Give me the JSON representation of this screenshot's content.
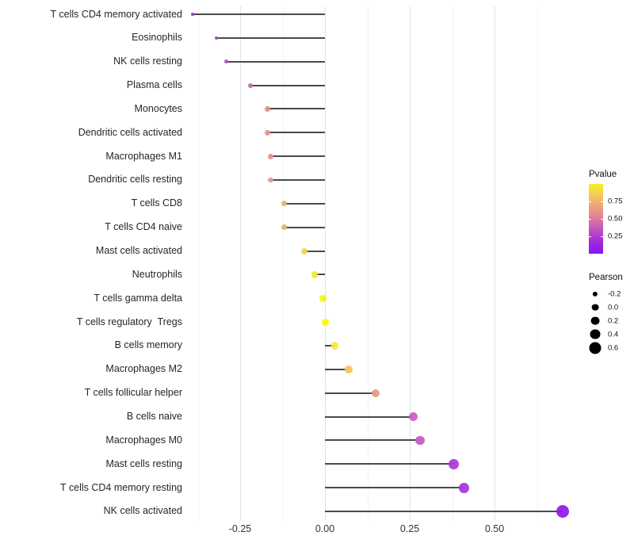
{
  "chart_data": {
    "type": "scatter",
    "variant": "lollipop",
    "orientation": "horizontal",
    "title": "",
    "xlabel": "",
    "ylabel": "",
    "xlim": [
      -0.402,
      0.752
    ],
    "grid": "vertical-only",
    "background": "#ffffff",
    "stick_color": "#4a4a4a",
    "categories": [
      "T cells CD4 memory activated",
      "Eosinophils",
      "NK cells resting",
      "Plasma cells",
      "Monocytes",
      "Dendritic cells activated",
      "Macrophages M1",
      "Dendritic cells resting",
      "T cells CD8",
      "T cells CD4 naive",
      "Mast cells activated",
      "Neutrophils",
      "T cells gamma delta",
      "T cells regulatory  Tregs",
      "B cells memory",
      "Macrophages M2",
      "T cells follicular helper",
      "B cells naive",
      "Macrophages M0",
      "Mast cells resting",
      "T cells CD4 memory resting",
      "NK cells activated"
    ],
    "series": [
      {
        "name": "Pearson",
        "values": [
          -0.39,
          -0.32,
          -0.29,
          -0.22,
          -0.17,
          -0.17,
          -0.16,
          -0.16,
          -0.12,
          -0.12,
          -0.06,
          -0.03,
          -0.005,
          0.002,
          0.03,
          0.07,
          0.15,
          0.26,
          0.28,
          0.38,
          0.41,
          0.7
        ]
      }
    ],
    "point_colors": [
      "#9c33d0",
      "#a73bc9",
      "#b44fc6",
      "#c867b0",
      "#e39190",
      "#e49390",
      "#e49390",
      "#e5948f",
      "#edb170",
      "#edb26f",
      "#f2d54e",
      "#f6e53a",
      "#f9f312",
      "#fdfa05",
      "#f8e93a",
      "#f4c75c",
      "#e69a82",
      "#c760bf",
      "#c45cc3",
      "#ab3bda",
      "#a737dd",
      "#8f1bec"
    ],
    "x_ticks": [
      {
        "value": -0.25,
        "label": "-0.25"
      },
      {
        "value": 0.0,
        "label": "0.00"
      },
      {
        "value": 0.25,
        "label": "0.25"
      },
      {
        "value": 0.5,
        "label": "0.50"
      }
    ],
    "x_minor_gridlines": [
      -0.375,
      -0.125,
      0.125,
      0.375,
      0.625
    ]
  },
  "legends": {
    "pvalue": {
      "title": "Pvalue",
      "tick_labels": [
        {
          "value": 0.75,
          "label": "0.75"
        },
        {
          "value": 0.5,
          "label": "0.50"
        },
        {
          "value": 0.25,
          "label": "0.25"
        }
      ],
      "value_range_top_to_bottom": [
        1.0,
        0.0
      ],
      "gradient_stops_top_to_bottom": [
        "#f5f120",
        "#f2cf55",
        "#eeac72",
        "#e68b8f",
        "#d167ae",
        "#b844c8",
        "#9c27dd",
        "#8b13ee"
      ]
    },
    "pearson": {
      "title": "Pearson",
      "dot_color": "#000000",
      "items": [
        {
          "value": -0.2,
          "label": "-0.2"
        },
        {
          "value": 0.0,
          "label": "0.0"
        },
        {
          "value": 0.2,
          "label": "0.2"
        },
        {
          "value": 0.4,
          "label": "0.4"
        },
        {
          "value": 0.6,
          "label": "0.6"
        }
      ]
    }
  }
}
